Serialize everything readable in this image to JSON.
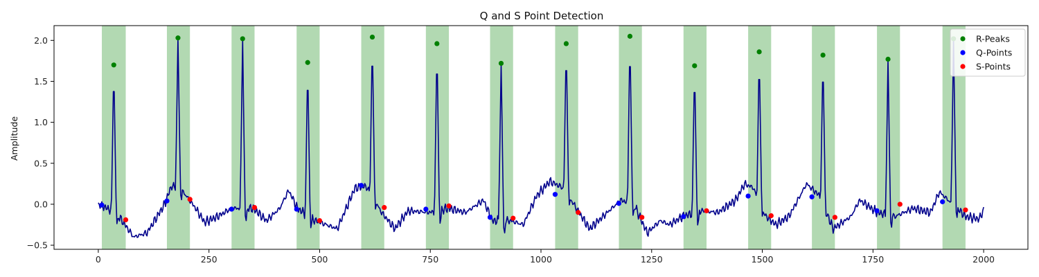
{
  "chart_data": {
    "type": "line",
    "title": "Q and S Point Detection",
    "xlabel": "",
    "ylabel": "Amplitude",
    "xlim": [
      -100,
      2100
    ],
    "ylim": [
      -0.55,
      2.18
    ],
    "x_ticks": [
      0,
      250,
      500,
      750,
      1000,
      1250,
      1500,
      1750,
      2000
    ],
    "y_ticks": [
      -0.5,
      0.0,
      0.5,
      1.0,
      1.5,
      2.0
    ],
    "x_tick_labels": [
      "0",
      "250",
      "500",
      "750",
      "1000",
      "1250",
      "1500",
      "1750",
      "2000"
    ],
    "y_tick_labels": [
      "−0.5",
      "0.0",
      "0.5",
      "1.0",
      "1.5",
      "2.0"
    ],
    "grid": false,
    "legend_position": "top-right",
    "signal": {
      "color": "#00008b",
      "x_range": [
        0,
        2000
      ],
      "baseline": [
        [
          0,
          0.0
        ],
        [
          40,
          -0.1
        ],
        [
          80,
          -0.4
        ],
        [
          110,
          -0.35
        ],
        [
          150,
          0.0
        ],
        [
          165,
          0.22
        ],
        [
          185,
          0.2
        ],
        [
          220,
          -0.05
        ],
        [
          240,
          -0.22
        ],
        [
          270,
          -0.15
        ],
        [
          300,
          -0.05
        ],
        [
          350,
          -0.05
        ],
        [
          380,
          -0.2
        ],
        [
          410,
          -0.05
        ],
        [
          430,
          0.17
        ],
        [
          450,
          -0.05
        ],
        [
          490,
          -0.2
        ],
        [
          540,
          -0.3
        ],
        [
          580,
          0.2
        ],
        [
          605,
          0.22
        ],
        [
          640,
          -0.1
        ],
        [
          670,
          -0.3
        ],
        [
          700,
          -0.08
        ],
        [
          750,
          -0.1
        ],
        [
          790,
          -0.05
        ],
        [
          830,
          -0.1
        ],
        [
          870,
          0.05
        ],
        [
          890,
          -0.2
        ],
        [
          930,
          -0.2
        ],
        [
          960,
          -0.25
        ],
        [
          990,
          0.1
        ],
        [
          1020,
          0.28
        ],
        [
          1050,
          0.2
        ],
        [
          1080,
          -0.05
        ],
        [
          1110,
          -0.3
        ],
        [
          1150,
          -0.1
        ],
        [
          1180,
          0.05
        ],
        [
          1210,
          0.0
        ],
        [
          1240,
          -0.35
        ],
        [
          1270,
          -0.2
        ],
        [
          1290,
          -0.25
        ],
        [
          1320,
          -0.15
        ],
        [
          1360,
          -0.08
        ],
        [
          1400,
          -0.1
        ],
        [
          1440,
          0.05
        ],
        [
          1460,
          0.25
        ],
        [
          1480,
          0.2
        ],
        [
          1500,
          -0.1
        ],
        [
          1530,
          -0.25
        ],
        [
          1560,
          -0.15
        ],
        [
          1600,
          0.25
        ],
        [
          1630,
          0.1
        ],
        [
          1660,
          -0.3
        ],
        [
          1700,
          -0.15
        ],
        [
          1720,
          0.05
        ],
        [
          1760,
          -0.1
        ],
        [
          1800,
          -0.15
        ],
        [
          1840,
          -0.05
        ],
        [
          1880,
          -0.1
        ],
        [
          1900,
          0.15
        ],
        [
          1930,
          0.0
        ],
        [
          1960,
          -0.15
        ],
        [
          1990,
          -0.18
        ],
        [
          2000,
          -0.07
        ]
      ],
      "r_peaks": [
        [
          35,
          1.7
        ],
        [
          180,
          2.03
        ],
        [
          326,
          2.02
        ],
        [
          473,
          1.73
        ],
        [
          619,
          2.04
        ],
        [
          765,
          1.96
        ],
        [
          910,
          1.72
        ],
        [
          1057,
          1.96
        ],
        [
          1201,
          2.05
        ],
        [
          1347,
          1.69
        ],
        [
          1493,
          1.86
        ],
        [
          1637,
          1.82
        ],
        [
          1784,
          1.77
        ],
        [
          1932,
          2.02
        ]
      ]
    },
    "r_peaks": {
      "name": "R-Peaks",
      "color": "#008000",
      "x": [
        35,
        180,
        326,
        473,
        619,
        765,
        910,
        1057,
        1201,
        1347,
        1493,
        1637,
        1784,
        1932
      ],
      "y": [
        1.7,
        2.03,
        2.02,
        1.73,
        2.04,
        1.96,
        1.72,
        1.96,
        2.05,
        1.69,
        1.86,
        1.82,
        1.77,
        2.02
      ]
    },
    "q_points": {
      "name": "Q-Points",
      "color": "#0000ff",
      "x": [
        8,
        155,
        301,
        448,
        594,
        740,
        885,
        1032,
        1176,
        1322,
        1468,
        1612,
        1759,
        1907
      ],
      "y": [
        -0.01,
        0.04,
        -0.06,
        -0.06,
        0.23,
        -0.06,
        -0.16,
        0.12,
        0.01,
        -0.15,
        0.1,
        0.09,
        -0.08,
        0.03
      ]
    },
    "s_points": {
      "name": "S-Points",
      "color": "#ff0000",
      "x": [
        62,
        207,
        353,
        500,
        646,
        792,
        937,
        1084,
        1228,
        1374,
        1520,
        1664,
        1811,
        1959
      ],
      "y": [
        -0.19,
        0.06,
        -0.04,
        -0.2,
        -0.04,
        -0.02,
        -0.17,
        -0.1,
        -0.16,
        -0.08,
        -0.14,
        -0.16,
        0.0,
        -0.07
      ]
    },
    "shaded_regions": {
      "color": "#008000",
      "opacity": 0.3,
      "intervals": [
        [
          8,
          62
        ],
        [
          155,
          207
        ],
        [
          301,
          353
        ],
        [
          448,
          500
        ],
        [
          594,
          646
        ],
        [
          740,
          792
        ],
        [
          885,
          937
        ],
        [
          1032,
          1084
        ],
        [
          1176,
          1228
        ],
        [
          1322,
          1374
        ],
        [
          1468,
          1520
        ],
        [
          1612,
          1664
        ],
        [
          1759,
          1811
        ],
        [
          1907,
          1959
        ]
      ]
    },
    "legend": [
      {
        "label": "R-Peaks",
        "color": "#008000"
      },
      {
        "label": "Q-Points",
        "color": "#0000ff"
      },
      {
        "label": "S-Points",
        "color": "#ff0000"
      }
    ]
  }
}
